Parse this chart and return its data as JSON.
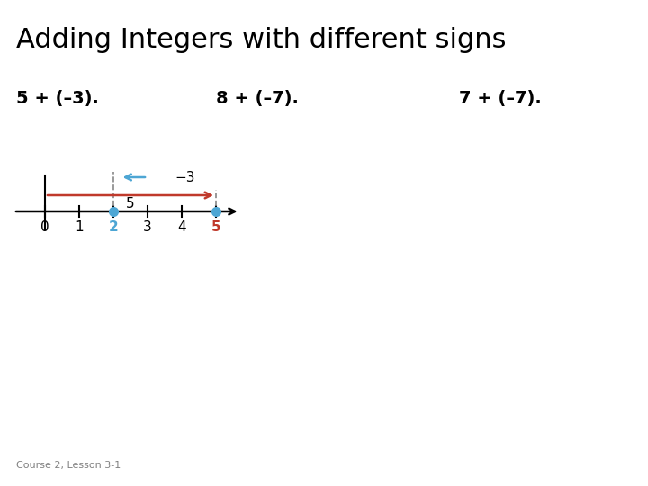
{
  "title": "Adding Integers with different signs",
  "title_fontsize": 22,
  "bg_color": "#ffffff",
  "label1": "5 + (–3).",
  "label2": "8 + (–7).",
  "label3": "7 + (–7).",
  "label_fontsize": 14,
  "numberline_xlim": [
    -0.7,
    6.2
  ],
  "numberline_ticks": [
    0,
    1,
    2,
    3,
    4,
    5
  ],
  "tick_color_default": "#000000",
  "tick_color_2": "#4da6d4",
  "tick_color_5": "#c0392b",
  "dot_at_2_color": "#4da6d4",
  "dot_at_5_color": "#4da6d4",
  "red_arrow_color": "#c0392b",
  "red_arrow_label": "5",
  "blue_arrow_color": "#4da6d4",
  "blue_arrow_label": "−3",
  "dashed_color": "#888888",
  "footer_text": "Course 2, Lesson 3-1",
  "footer_fontsize": 8,
  "footer_color": "#808080"
}
